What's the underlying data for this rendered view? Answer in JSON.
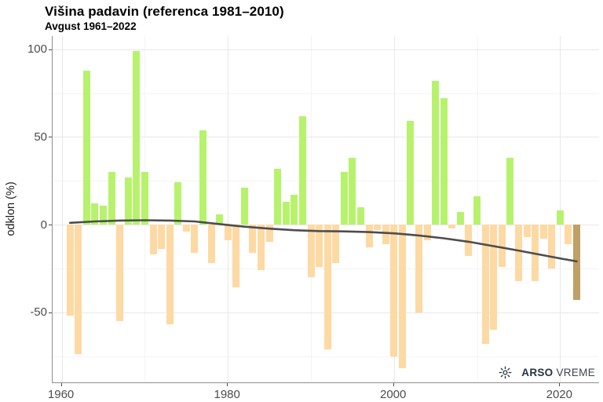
{
  "header": {
    "title": "Višina padavin (referenca 1981–2010)",
    "subtitle": "Avgust 1961–2022"
  },
  "axes": {
    "y_label": "odklon (%)",
    "y_ticks": [
      100,
      50,
      0,
      -50
    ],
    "x_ticks": [
      1960,
      1980,
      2000,
      2020
    ]
  },
  "logo": {
    "icon": "weather-sun-icon",
    "bold": "ARSO",
    "regular": "VREME"
  },
  "chart_data": {
    "type": "bar",
    "title": "Višina padavin (referenca 1981–2010)",
    "subtitle": "Avgust 1961–2022",
    "xlabel": "",
    "ylabel": "odklon (%)",
    "xlim": [
      1958.9,
      2024.7
    ],
    "ylim": [
      -90,
      107.5
    ],
    "grid": {
      "major_y": [
        100,
        50,
        0,
        -50
      ],
      "minor_y": [
        75,
        25,
        -25,
        -75
      ],
      "major_x": [
        1960,
        1980,
        2000,
        2020
      ],
      "minor_x": [
        1970,
        1990,
        2010
      ]
    },
    "legend": "none",
    "highlight_year": 2022,
    "colors": {
      "positive": "#b7f26d",
      "negative": "#fdd9a3",
      "highlight": "#bfa065",
      "trend": "#4d4d4d"
    },
    "years": [
      1961,
      1962,
      1963,
      1964,
      1965,
      1966,
      1967,
      1968,
      1969,
      1970,
      1971,
      1972,
      1973,
      1974,
      1975,
      1976,
      1977,
      1978,
      1979,
      1980,
      1981,
      1982,
      1983,
      1984,
      1985,
      1986,
      1987,
      1988,
      1989,
      1990,
      1991,
      1992,
      1993,
      1994,
      1995,
      1996,
      1997,
      1998,
      1999,
      2000,
      2001,
      2002,
      2003,
      2004,
      2005,
      2006,
      2007,
      2008,
      2009,
      2010,
      2011,
      2012,
      2013,
      2014,
      2015,
      2016,
      2017,
      2018,
      2019,
      2020,
      2021,
      2022
    ],
    "values": [
      -52,
      -74,
      88,
      12,
      11,
      30,
      -55,
      27,
      99,
      30,
      -17,
      -14,
      -57,
      24,
      -4,
      -16,
      54,
      -22,
      6,
      -9,
      -36,
      21,
      -16,
      -26,
      -10,
      32,
      13,
      17,
      62,
      -30,
      -24,
      -71,
      -22,
      30,
      38,
      10,
      -13,
      -3,
      -11,
      -75,
      -82,
      59,
      -50,
      -9,
      82,
      72,
      -2,
      7,
      -18,
      16,
      -68,
      -60,
      -24,
      38,
      -32,
      -7,
      -32,
      -8,
      -25,
      8,
      -11,
      -43
    ],
    "trend": {
      "years": [
        1961,
        1964,
        1967,
        1970,
        1973,
        1976,
        1979,
        1982,
        1985,
        1988,
        1991,
        1994,
        1997,
        2000,
        2003,
        2006,
        2009,
        2012,
        2015,
        2018,
        2020,
        2022
      ],
      "values": [
        1.0,
        1.8,
        2.3,
        2.5,
        2.3,
        1.8,
        0.3,
        -1.2,
        -2.3,
        -3.2,
        -3.7,
        -3.9,
        -4.3,
        -5.0,
        -6.2,
        -7.8,
        -9.8,
        -12.3,
        -14.8,
        -17.5,
        -19.3,
        -21.0
      ]
    }
  }
}
